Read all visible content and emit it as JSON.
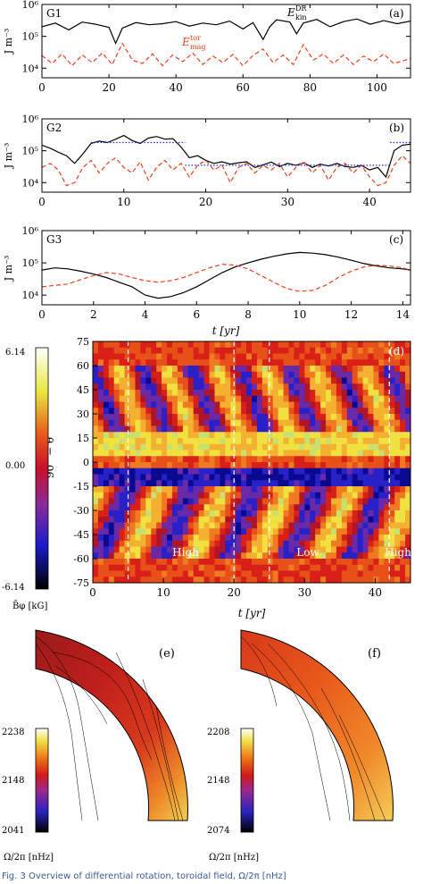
{
  "chart_data": [
    {
      "panel": "(a)",
      "type": "line",
      "tag": "G1",
      "ylabel": "J m⁻³",
      "log_y": true,
      "ylim": [
        5000,
        1000000
      ],
      "xlim": [
        0,
        110
      ],
      "xticks": [
        "0",
        "20",
        "40",
        "60",
        "80",
        "100"
      ],
      "yticks": [
        "10⁴",
        "10⁵",
        "10⁶"
      ],
      "series": [
        {
          "name": "E_kin^DR",
          "color": "#000000",
          "style": "solid",
          "x": [
            0,
            4,
            8,
            12,
            16,
            20,
            22,
            24,
            28,
            32,
            36,
            40,
            44,
            48,
            52,
            56,
            60,
            63,
            66,
            68,
            70,
            74,
            76,
            78,
            82,
            86,
            90,
            94,
            98,
            102,
            106,
            110
          ],
          "y": [
            200000,
            260000,
            160000,
            280000,
            240000,
            190000,
            60000,
            180000,
            270000,
            230000,
            250000,
            290000,
            210000,
            260000,
            230000,
            300000,
            170000,
            270000,
            80000,
            200000,
            330000,
            280000,
            120000,
            260000,
            340000,
            200000,
            290000,
            350000,
            240000,
            310000,
            250000,
            300000
          ]
        },
        {
          "name": "E_mag^tor",
          "color": "#e8401c",
          "style": "dashed",
          "x": [
            0,
            3,
            6,
            9,
            12,
            15,
            18,
            21,
            24,
            27,
            30,
            33,
            36,
            39,
            42,
            45,
            48,
            51,
            54,
            57,
            60,
            63,
            66,
            69,
            72,
            75,
            78,
            81,
            84,
            87,
            90,
            93,
            96,
            99,
            102,
            105,
            110
          ],
          "y": [
            25000,
            14000,
            28000,
            12000,
            26000,
            15000,
            30000,
            13000,
            60000,
            18000,
            14000,
            28000,
            12000,
            26000,
            16000,
            30000,
            13000,
            24000,
            15000,
            27000,
            12000,
            25000,
            40000,
            15000,
            26000,
            13000,
            55000,
            18000,
            28000,
            14000,
            26000,
            13000,
            24000,
            16000,
            28000,
            14000,
            20000
          ]
        }
      ],
      "labels": {
        "kin": "E",
        "kin_sup": "DR",
        "kin_sub": "kin",
        "mag": "E",
        "mag_sup": "tor",
        "mag_sub": "mag"
      }
    },
    {
      "panel": "(b)",
      "type": "line",
      "tag": "G2",
      "ylabel": "J m⁻³",
      "log_y": true,
      "ylim": [
        5000,
        1000000
      ],
      "xlim": [
        0,
        45
      ],
      "xticks": [
        "0",
        "10",
        "20",
        "30",
        "40"
      ],
      "yticks": [
        "10⁴",
        "10⁵",
        "10⁶"
      ],
      "series": [
        {
          "name": "",
          "color": "#000000",
          "style": "solid",
          "x": [
            0,
            1,
            2,
            3,
            4,
            5,
            6,
            7,
            8,
            9,
            10,
            11,
            12,
            13,
            14,
            15,
            16,
            17,
            18,
            19,
            20,
            21,
            22,
            23,
            24,
            25,
            26,
            27,
            28,
            29,
            30,
            31,
            32,
            33,
            34,
            35,
            36,
            37,
            38,
            39,
            40,
            41,
            42,
            43,
            44,
            45
          ],
          "y": [
            150000,
            120000,
            90000,
            70000,
            40000,
            80000,
            170000,
            200000,
            180000,
            230000,
            300000,
            210000,
            170000,
            250000,
            280000,
            230000,
            240000,
            130000,
            60000,
            70000,
            50000,
            40000,
            45000,
            38000,
            42000,
            45000,
            30000,
            36000,
            44000,
            32000,
            40000,
            35000,
            42000,
            30000,
            38000,
            33000,
            40000,
            32000,
            30000,
            35000,
            25000,
            30000,
            15000,
            100000,
            150000,
            160000
          ]
        },
        {
          "name": "",
          "color": "#e8401c",
          "style": "dashed",
          "x": [
            0,
            1,
            2,
            3,
            4,
            5,
            6,
            7,
            8,
            9,
            10,
            11,
            12,
            13,
            14,
            15,
            16,
            17,
            18,
            19,
            20,
            21,
            22,
            23,
            24,
            25,
            26,
            27,
            28,
            29,
            30,
            31,
            32,
            33,
            34,
            35,
            36,
            37,
            38,
            39,
            40,
            41,
            42,
            43,
            44,
            45
          ],
          "y": [
            30000,
            40000,
            25000,
            8000,
            10000,
            30000,
            50000,
            20000,
            40000,
            60000,
            30000,
            20000,
            45000,
            12000,
            30000,
            50000,
            25000,
            40000,
            15000,
            35000,
            50000,
            25000,
            35000,
            10000,
            30000,
            40000,
            20000,
            35000,
            25000,
            40000,
            15000,
            30000,
            45000,
            20000,
            35000,
            12000,
            30000,
            40000,
            20000,
            35000,
            15000,
            8000,
            10000,
            35000,
            70000,
            40000
          ]
        },
        {
          "name": "",
          "color": "#1c2fd0",
          "style": "dotted",
          "x": [
            6,
            17.5
          ],
          "y": [
            180000,
            180000
          ]
        },
        {
          "name": "",
          "color": "#1c2fd0",
          "style": "dotted",
          "x": [
            17.5,
            42.5
          ],
          "y": [
            35000,
            35000
          ]
        },
        {
          "name": "",
          "color": "#1c2fd0",
          "style": "dotted",
          "x": [
            42.5,
            45
          ],
          "y": [
            180000,
            180000
          ]
        }
      ]
    },
    {
      "panel": "(c)",
      "type": "line",
      "tag": "G3",
      "ylabel": "J m⁻³",
      "xlabel": "t [yr]",
      "log_y": true,
      "ylim": [
        5000,
        1000000
      ],
      "xlim": [
        0,
        14.3
      ],
      "xticks": [
        "0",
        "2",
        "4",
        "6",
        "8",
        "10",
        "12",
        "14"
      ],
      "yticks": [
        "10⁴",
        "10⁵",
        "10⁶"
      ],
      "series": [
        {
          "name": "",
          "color": "#000000",
          "style": "solid",
          "x": [
            0,
            0.5,
            1,
            1.5,
            2,
            2.5,
            3,
            3.5,
            4,
            4.5,
            5,
            5.5,
            6,
            6.5,
            7,
            7.5,
            8,
            8.5,
            9,
            9.5,
            10,
            10.5,
            11,
            11.5,
            12,
            12.5,
            13,
            13.5,
            14,
            14.3
          ],
          "y": [
            60000,
            70000,
            65000,
            55000,
            45000,
            35000,
            25000,
            18000,
            10000,
            8000,
            9000,
            12000,
            18000,
            30000,
            50000,
            75000,
            100000,
            130000,
            160000,
            190000,
            210000,
            200000,
            180000,
            150000,
            120000,
            95000,
            80000,
            70000,
            65000,
            60000
          ]
        },
        {
          "name": "",
          "color": "#e8401c",
          "style": "dashed",
          "x": [
            0,
            0.5,
            1,
            1.5,
            2,
            2.5,
            3,
            3.5,
            4,
            4.5,
            5,
            5.5,
            6,
            6.5,
            7,
            7.5,
            8,
            8.5,
            9,
            9.5,
            10,
            10.5,
            11,
            11.5,
            12,
            12.5,
            13,
            13.5,
            14,
            14.3
          ],
          "y": [
            18000,
            20000,
            22000,
            30000,
            40000,
            50000,
            45000,
            35000,
            28000,
            25000,
            28000,
            35000,
            50000,
            70000,
            90000,
            85000,
            65000,
            40000,
            25000,
            16000,
            13000,
            14000,
            20000,
            35000,
            55000,
            75000,
            85000,
            80000,
            70000,
            60000
          ]
        }
      ]
    },
    {
      "panel": "(d)",
      "type": "heatmap",
      "xlabel": "t [yr]",
      "ylabel": "90° − θ",
      "xlim": [
        0,
        45
      ],
      "ylim": [
        -75,
        75
      ],
      "xticks": [
        "0",
        "10",
        "20",
        "30",
        "40"
      ],
      "yticks": [
        "75",
        "60",
        "45",
        "30",
        "15",
        "0",
        "-15",
        "-30",
        "-45",
        "-60",
        "-75"
      ],
      "colorbar": {
        "max": "6.14",
        "mid": "0.00",
        "min": "-6.14",
        "label": "B̄φ [kG]"
      },
      "annotations": [
        "High",
        "Low",
        "High"
      ],
      "dashed_lines_x": [
        5,
        20,
        25,
        42
      ]
    },
    {
      "panel": "(e)",
      "type": "contour",
      "colorbar": {
        "max": "2238",
        "mid": "2148",
        "min": "2041",
        "label": "Ω/2π [nHz]"
      }
    },
    {
      "panel": "(f)",
      "type": "contour",
      "colorbar": {
        "max": "2208",
        "mid": "2148",
        "min": "2074",
        "label": "Ω/2π [nHz]"
      }
    }
  ],
  "panel_labels": {
    "a": "(a)",
    "b": "(b)",
    "c": "(c)",
    "d": "(d)",
    "e": "(e)",
    "f": "(f)"
  },
  "caption": "Fig. 3 Overview of differential rotation, toroidal field, Ω/2π [nHz]"
}
